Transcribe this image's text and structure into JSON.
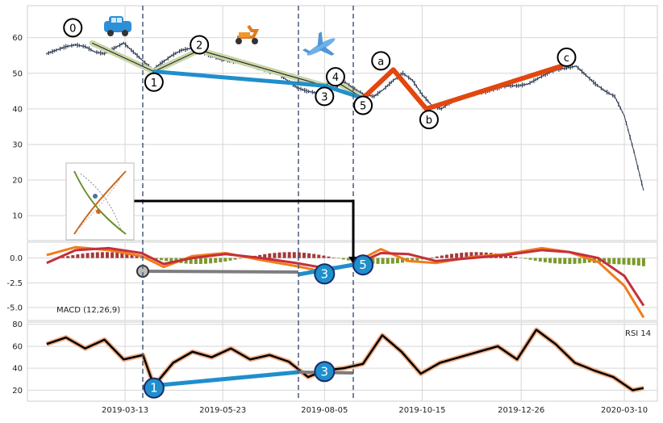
{
  "chart_data": [
    {
      "type": "line",
      "panel": "price",
      "title": "",
      "xlabel": "",
      "ylabel": "",
      "x_ticks": [
        "2019-03-13",
        "2019-05-23",
        "2019-08-05",
        "2019-10-15",
        "2019-12-26",
        "2020-03-10"
      ],
      "y_ticks": [
        10,
        20,
        30,
        40,
        50,
        60
      ],
      "ylim": [
        3,
        69
      ],
      "grid": true,
      "series": [
        {
          "style": "ohlc-bars",
          "color": "#2f3b52",
          "x": [
            "2019-01-15",
            "2019-01-22",
            "2019-01-29",
            "2019-02-05",
            "2019-02-12",
            "2019-02-19",
            "2019-02-26",
            "2019-03-05",
            "2019-03-12",
            "2019-03-19",
            "2019-03-26",
            "2019-04-02",
            "2019-04-09",
            "2019-04-16",
            "2019-04-23",
            "2019-04-30",
            "2019-05-07",
            "2019-05-14",
            "2019-05-21",
            "2019-05-28",
            "2019-06-04",
            "2019-06-11",
            "2019-06-18",
            "2019-06-25",
            "2019-07-02",
            "2019-07-09",
            "2019-07-16",
            "2019-07-23",
            "2019-07-30",
            "2019-08-06",
            "2019-08-13",
            "2019-08-20",
            "2019-08-27",
            "2019-09-03",
            "2019-09-10",
            "2019-09-17",
            "2019-09-24",
            "2019-10-01",
            "2019-10-08",
            "2019-10-15",
            "2019-10-22",
            "2019-10-29",
            "2019-11-05",
            "2019-11-12",
            "2019-11-19",
            "2019-11-26",
            "2019-12-03",
            "2019-12-10",
            "2019-12-17",
            "2019-12-24",
            "2019-12-31",
            "2020-01-07",
            "2020-01-14",
            "2020-01-21",
            "2020-01-28",
            "2020-02-04",
            "2020-02-11",
            "2020-02-18",
            "2020-02-25",
            "2020-03-03",
            "2020-03-10",
            "2020-03-17",
            "2020-03-24"
          ],
          "y": [
            55.5,
            56.5,
            57.5,
            58,
            57.5,
            56,
            55.5,
            57,
            58.5,
            56,
            53.5,
            51,
            53,
            55,
            56.5,
            57,
            56,
            55,
            54,
            53.5,
            53,
            52.5,
            51.5,
            50.5,
            50,
            48,
            46,
            45,
            44.5,
            44,
            46,
            47.5,
            45.5,
            44,
            43.5,
            45.5,
            48,
            50,
            48,
            44,
            41,
            40,
            42,
            43,
            44,
            44.5,
            45,
            46,
            46.5,
            46.5,
            47,
            48.5,
            50,
            51,
            51.5,
            52,
            49.5,
            47,
            45,
            43.5,
            38,
            28,
            17
          ]
        }
      ],
      "waves": [
        {
          "name": "",
          "color": "#1f8fcc",
          "points": [
            {
              "x": "2019-04-03",
              "y": 50.5
            },
            {
              "x": "2019-08-05",
              "y": 46.5
            },
            {
              "x": "2019-09-02",
              "y": 43
            }
          ]
        },
        {
          "name": "",
          "color": "#e2470f",
          "points": [
            {
              "x": "2019-09-02",
              "y": 43
            },
            {
              "x": "2019-09-24",
              "y": 51
            },
            {
              "x": "2019-10-18",
              "y": 40
            },
            {
              "x": "2020-01-24",
              "y": 52
            }
          ]
        },
        {
          "name": "",
          "color": "#c9d6a8",
          "points": [
            {
              "x": "2019-02-17",
              "y": 58.5
            },
            {
              "x": "2019-04-03",
              "y": 50.5
            },
            {
              "x": "2019-05-06",
              "y": 56.5
            },
            {
              "x": "2019-08-05",
              "y": 46.5
            },
            {
              "x": "2019-08-12",
              "y": 48
            },
            {
              "x": "2019-09-02",
              "y": 43
            }
          ]
        }
      ],
      "wave_labels": [
        {
          "label": "0",
          "x": "2019-02-03",
          "y": 62.8
        },
        {
          "label": "1",
          "x": "2019-04-03",
          "y": 47.5
        },
        {
          "label": "2",
          "x": "2019-05-06",
          "y": 58
        },
        {
          "label": "3",
          "x": "2019-08-05",
          "y": 43.5
        },
        {
          "label": "4",
          "x": "2019-08-13",
          "y": 49
        },
        {
          "label": "5",
          "x": "2019-09-02",
          "y": 41
        },
        {
          "label": "a",
          "x": "2019-09-15",
          "y": 53.5
        },
        {
          "label": "b",
          "x": "2019-10-20",
          "y": 37
        },
        {
          "label": "c",
          "x": "2020-01-28",
          "y": 54.5
        }
      ]
    },
    {
      "type": "bar",
      "panel": "macd",
      "title": "MACD (12,26,9)",
      "y_ticks": [
        0.0,
        -2.5,
        -5.0
      ],
      "ylim": [
        -6.3,
        1.6
      ],
      "grid": true,
      "series": [
        {
          "name": "",
          "color": "#f07d1a",
          "x": [
            "2019-01-15",
            "2019-02-05",
            "2019-03-01",
            "2019-03-25",
            "2019-04-10",
            "2019-05-01",
            "2019-05-25",
            "2019-06-20",
            "2019-07-15",
            "2019-08-05",
            "2019-08-25",
            "2019-09-15",
            "2019-10-05",
            "2019-10-25",
            "2019-11-20",
            "2019-12-15",
            "2020-01-10",
            "2020-01-30",
            "2020-02-20",
            "2020-03-10",
            "2020-03-24"
          ],
          "values": [
            0.3,
            1.1,
            0.8,
            0.2,
            -0.9,
            0.2,
            0.5,
            -0.2,
            -0.8,
            -1.4,
            -0.6,
            0.9,
            -0.3,
            -0.5,
            0.1,
            0.4,
            1.0,
            0.6,
            -0.4,
            -2.8,
            -6.0
          ]
        },
        {
          "name": "",
          "color": "#c62f3b",
          "x": [
            "2019-01-15",
            "2019-02-05",
            "2019-03-01",
            "2019-03-25",
            "2019-04-10",
            "2019-05-01",
            "2019-05-25",
            "2019-06-20",
            "2019-07-15",
            "2019-08-05",
            "2019-08-25",
            "2019-09-15",
            "2019-10-05",
            "2019-10-25",
            "2019-11-20",
            "2019-12-15",
            "2020-01-10",
            "2020-01-30",
            "2020-02-20",
            "2020-03-10",
            "2020-03-24"
          ],
          "values": [
            -0.5,
            0.8,
            1.0,
            0.5,
            -0.6,
            0.0,
            0.4,
            0.0,
            -0.5,
            -1.0,
            -0.8,
            0.5,
            0.4,
            -0.3,
            0.0,
            0.3,
            0.8,
            0.6,
            0.0,
            -1.8,
            -4.8
          ]
        }
      ],
      "wave_labels": [
        {
          "label": "3",
          "x": "2019-08-05",
          "y": -1.6
        },
        {
          "label": "5",
          "x": "2019-09-02",
          "y": -0.7
        }
      ]
    },
    {
      "type": "line",
      "panel": "rsi",
      "title": "RSI 14",
      "y_ticks": [
        20,
        40,
        60,
        80
      ],
      "ylim": [
        10,
        82
      ],
      "grid": true,
      "series": [
        {
          "name": "",
          "color": "#000000",
          "x": [
            "2019-01-15",
            "2019-01-29",
            "2019-02-12",
            "2019-02-26",
            "2019-03-12",
            "2019-03-26",
            "2019-04-03",
            "2019-04-17",
            "2019-05-01",
            "2019-05-15",
            "2019-05-29",
            "2019-06-12",
            "2019-06-26",
            "2019-07-10",
            "2019-07-24",
            "2019-08-05",
            "2019-08-19",
            "2019-09-02",
            "2019-09-16",
            "2019-09-30",
            "2019-10-14",
            "2019-10-28",
            "2019-11-11",
            "2019-11-25",
            "2019-12-09",
            "2019-12-23",
            "2020-01-06",
            "2020-01-20",
            "2020-02-03",
            "2020-02-17",
            "2020-03-02",
            "2020-03-16",
            "2020-03-24"
          ],
          "values": [
            62,
            68,
            58,
            66,
            48,
            52,
            24,
            45,
            55,
            50,
            58,
            48,
            52,
            46,
            32,
            38,
            40,
            44,
            70,
            55,
            35,
            45,
            50,
            55,
            60,
            48,
            75,
            62,
            45,
            38,
            32,
            20,
            22
          ]
        }
      ],
      "wave_labels": [
        {
          "label": "1",
          "x": "2019-04-03",
          "y": 22
        },
        {
          "label": "3",
          "x": "2019-08-05",
          "y": 37
        }
      ]
    }
  ]
}
